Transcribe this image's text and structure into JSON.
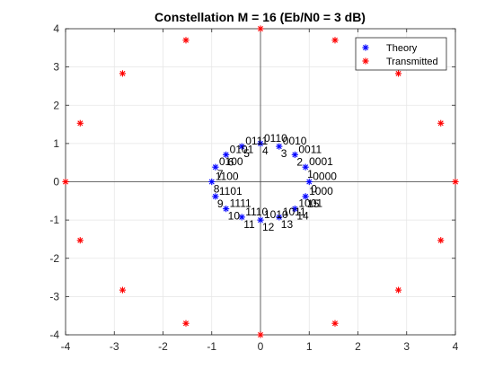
{
  "chart_data": {
    "type": "scatter",
    "title": "Constellation M = 16 (Eb/N0 = 3 dB)",
    "xlabel": "",
    "ylabel": "",
    "xlim": [
      -4,
      4
    ],
    "ylim": [
      -4,
      4
    ],
    "xticks": [
      -4,
      -3,
      -2,
      -1,
      0,
      1,
      2,
      3,
      4
    ],
    "yticks": [
      -4,
      -3,
      -2,
      -1,
      0,
      1,
      2,
      3,
      4
    ],
    "grid": true,
    "legend_position": "top-right",
    "series": [
      {
        "name": "Theory",
        "color": "#0000ff",
        "marker": "asterisk",
        "points": [
          {
            "x": 1.0,
            "y": 0.0
          },
          {
            "x": 0.924,
            "y": 0.383
          },
          {
            "x": 0.707,
            "y": 0.707
          },
          {
            "x": 0.383,
            "y": 0.924
          },
          {
            "x": 0.0,
            "y": 1.0
          },
          {
            "x": -0.383,
            "y": 0.924
          },
          {
            "x": -0.707,
            "y": 0.707
          },
          {
            "x": -0.924,
            "y": 0.383
          },
          {
            "x": -1.0,
            "y": 0.0
          },
          {
            "x": -0.924,
            "y": -0.383
          },
          {
            "x": -0.707,
            "y": -0.707
          },
          {
            "x": -0.383,
            "y": -0.924
          },
          {
            "x": 0.0,
            "y": -1.0
          },
          {
            "x": 0.383,
            "y": -0.924
          },
          {
            "x": 0.707,
            "y": -0.707
          },
          {
            "x": 0.924,
            "y": -0.383
          }
        ]
      },
      {
        "name": "Transmitted",
        "color": "#ff0000",
        "marker": "asterisk",
        "points": [
          {
            "x": 4.0,
            "y": 0.0
          },
          {
            "x": 3.7,
            "y": 1.53
          },
          {
            "x": 2.83,
            "y": 2.83
          },
          {
            "x": 1.53,
            "y": 3.7
          },
          {
            "x": 0.0,
            "y": 4.0
          },
          {
            "x": -1.53,
            "y": 3.7
          },
          {
            "x": -2.83,
            "y": 2.83
          },
          {
            "x": -3.7,
            "y": 1.53
          },
          {
            "x": -4.0,
            "y": 0.0
          },
          {
            "x": -3.7,
            "y": -1.53
          },
          {
            "x": -2.83,
            "y": -2.83
          },
          {
            "x": -1.53,
            "y": -3.7
          },
          {
            "x": 0.0,
            "y": -4.0
          },
          {
            "x": 1.53,
            "y": -3.7
          },
          {
            "x": 2.83,
            "y": -2.83
          },
          {
            "x": 3.7,
            "y": -1.53
          }
        ]
      }
    ],
    "annotations": [
      {
        "text": "0000",
        "x": 1.0,
        "y": 0.0
      },
      {
        "text": "0001",
        "x": 0.924,
        "y": 0.383
      },
      {
        "text": "0011",
        "x": 0.707,
        "y": 0.707
      },
      {
        "text": "0010",
        "x": 0.383,
        "y": 0.924
      },
      {
        "text": "0110",
        "x": 0.0,
        "y": 1.0
      },
      {
        "text": "0111",
        "x": -0.383,
        "y": 0.924
      },
      {
        "text": "0101",
        "x": -0.707,
        "y": 0.707
      },
      {
        "text": "0100",
        "x": -0.924,
        "y": 0.383
      },
      {
        "text": "1100",
        "x": -1.0,
        "y": 0.0
      },
      {
        "text": "1101",
        "x": -0.924,
        "y": -0.383
      },
      {
        "text": "1111",
        "x": -0.707,
        "y": -0.707
      },
      {
        "text": "1110",
        "x": -0.383,
        "y": -0.924
      },
      {
        "text": "1010",
        "x": 0.0,
        "y": -1.0
      },
      {
        "text": "1011",
        "x": 0.383,
        "y": -0.924
      },
      {
        "text": "1001",
        "x": 0.707,
        "y": -0.707
      },
      {
        "text": "1000",
        "x": 0.924,
        "y": -0.383
      },
      {
        "text": "0",
        "x": 1.0,
        "y": 0.0
      },
      {
        "text": "1",
        "x": 0.924,
        "y": 0.383
      },
      {
        "text": "2",
        "x": 0.707,
        "y": 0.707
      },
      {
        "text": "3",
        "x": 0.383,
        "y": 0.924
      },
      {
        "text": "4",
        "x": 0.0,
        "y": 1.0
      },
      {
        "text": "5",
        "x": -0.383,
        "y": 0.924
      },
      {
        "text": "6",
        "x": -0.707,
        "y": 0.707
      },
      {
        "text": "7",
        "x": -0.924,
        "y": 0.383
      },
      {
        "text": "8",
        "x": -1.0,
        "y": 0.0
      },
      {
        "text": "9",
        "x": -0.924,
        "y": -0.383
      },
      {
        "text": "10",
        "x": -0.707,
        "y": -0.707
      },
      {
        "text": "11",
        "x": -0.383,
        "y": -0.924
      },
      {
        "text": "12",
        "x": 0.0,
        "y": -1.0
      },
      {
        "text": "13",
        "x": 0.383,
        "y": -0.924
      },
      {
        "text": "14",
        "x": 0.707,
        "y": -0.707
      },
      {
        "text": "15",
        "x": 0.924,
        "y": -0.383
      }
    ]
  }
}
